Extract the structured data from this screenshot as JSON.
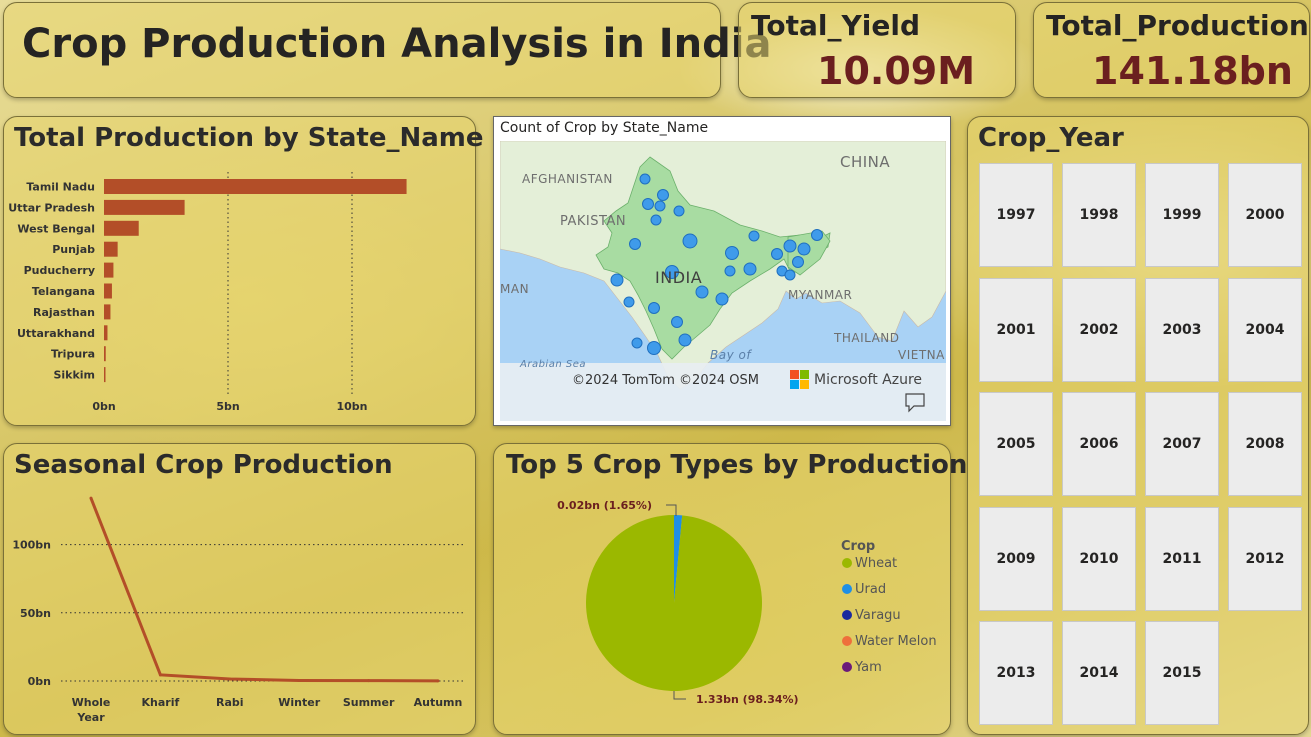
{
  "header": {
    "title": "Crop Production Analysis in India"
  },
  "kpis": {
    "yield_label": "Total_Yield",
    "yield_value": "10.09M",
    "production_label": "Total_Production",
    "production_value": "141.18bn"
  },
  "map": {
    "title": "Count of Crop by State_Name",
    "labels": [
      "AFGHANISTAN",
      "PAKISTAN",
      "CHINA",
      "INDIA",
      "MYANMAR",
      "THAILAND",
      "VIETNA",
      "MAN",
      "Arabian Sea",
      "Bay of"
    ],
    "attribution": "©2024 TomTom  ©2024 OSM",
    "brand": "Microsoft Azure",
    "colors": {
      "land": "#a8dca2",
      "water": "#a9d2f5",
      "dot": "#3f9bea"
    }
  },
  "year_slicer": {
    "title": "Crop_Year",
    "years": [
      "1997",
      "1998",
      "1999",
      "2000",
      "2001",
      "2002",
      "2003",
      "2004",
      "2005",
      "2006",
      "2007",
      "2008",
      "2009",
      "2010",
      "2011",
      "2012",
      "2013",
      "2014",
      "2015"
    ]
  },
  "chart_data": [
    {
      "type": "bar",
      "orientation": "horizontal",
      "title": "Total Production by State_Name",
      "categories": [
        "Tamil Nadu",
        "Uttar Pradesh",
        "West Bengal",
        "Punjab",
        "Puducherry",
        "Telangana",
        "Rajasthan",
        "Uttarakhand",
        "Tripura",
        "Sikkim"
      ],
      "values": [
        12.2,
        3.25,
        1.4,
        0.55,
        0.38,
        0.32,
        0.26,
        0.14,
        0.07,
        0.04
      ],
      "x_ticks": [
        "0bn",
        "5bn",
        "10bn"
      ],
      "xlim": [
        0,
        15
      ],
      "grid": true,
      "color": "#b34e28"
    },
    {
      "type": "line",
      "title": "Seasonal Crop Production",
      "categories": [
        "Whole Year",
        "Kharif",
        "Rabi",
        "Winter",
        "Summer",
        "Autumn"
      ],
      "values": [
        134,
        4.5,
        1.5,
        0.4,
        0.3,
        0.1
      ],
      "y_ticks": [
        "0bn",
        "50bn",
        "100bn"
      ],
      "ylim": [
        0,
        140
      ],
      "grid": true,
      "color": "#b34e28"
    },
    {
      "type": "pie",
      "title": "Top 5 Crop Types by Production",
      "legend_title": "Crop",
      "legend_position": "right",
      "series": [
        {
          "name": "Wheat",
          "value": 1.33,
          "color": "#9bb800"
        },
        {
          "name": "Urad",
          "value": 0.02,
          "color": "#1f8fe6"
        },
        {
          "name": "Varagu",
          "value": 0,
          "color": "#1a2a9e"
        },
        {
          "name": "Water Melon",
          "value": 0,
          "color": "#ee6f3c"
        },
        {
          "name": "Yam",
          "value": 0,
          "color": "#6b1a7a"
        }
      ],
      "data_labels": [
        "1.33bn (98.34%)",
        "0.02bn (1.65%)"
      ]
    }
  ]
}
